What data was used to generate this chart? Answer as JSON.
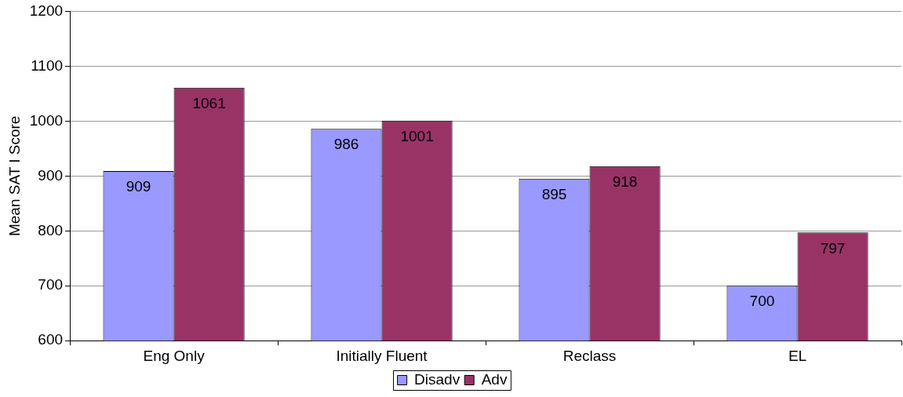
{
  "chart_data": {
    "type": "bar",
    "ylabel": "Mean SAT I Score",
    "categories": [
      "Eng Only",
      "Initially Fluent",
      "Reclass",
      "EL"
    ],
    "series": [
      {
        "name": "Disadv",
        "color": "#9999ff",
        "values": [
          909,
          986,
          895,
          700
        ]
      },
      {
        "name": "Adv",
        "color": "#993366",
        "values": [
          1061,
          1001,
          918,
          797
        ]
      }
    ],
    "ylim": [
      600,
      1200
    ],
    "yticks": [
      600,
      700,
      800,
      900,
      1000,
      1100,
      1200
    ],
    "grid": "y",
    "legend": "bottom",
    "data_labels": true
  }
}
